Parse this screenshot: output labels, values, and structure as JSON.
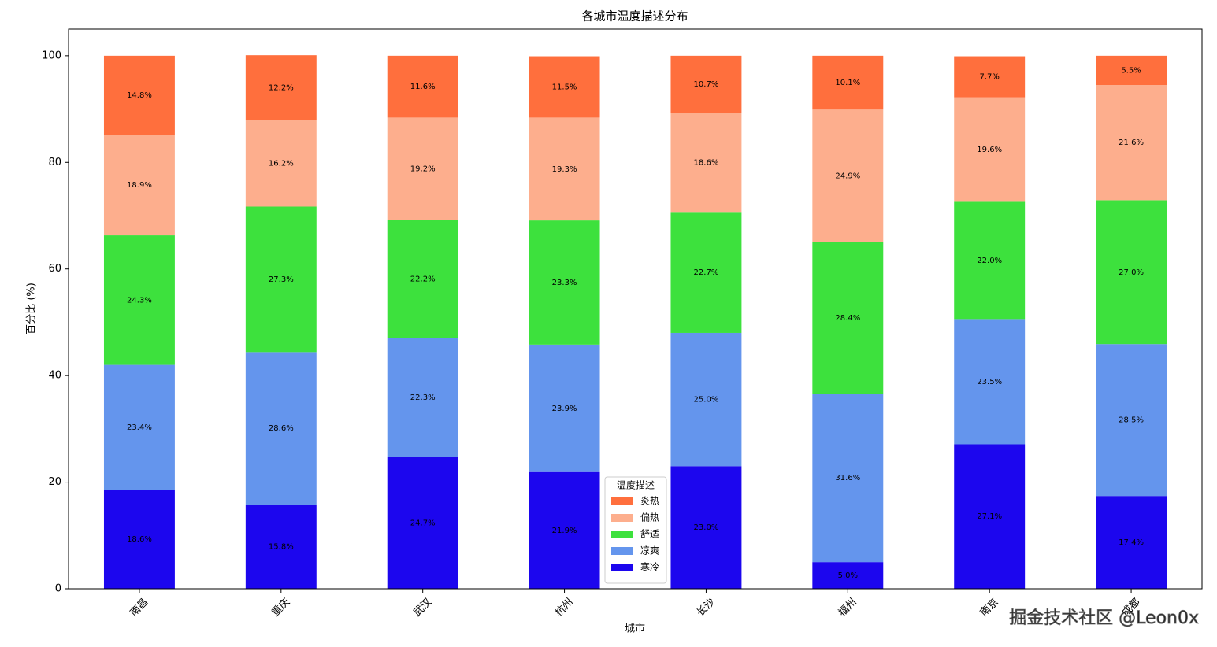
{
  "chart_data": {
    "type": "stacked_bar",
    "title": "各城市温度描述分布",
    "xlabel": "城市",
    "ylabel": "百分比 (%)",
    "legend_title": "温度描述",
    "legend_position": "lower center",
    "categories": [
      "南昌",
      "重庆",
      "武汉",
      "杭州",
      "长沙",
      "福州",
      "南京",
      "成都"
    ],
    "series": [
      {
        "name": "寒冷",
        "color": "#1c06ee",
        "values": [
          18.6,
          15.8,
          24.7,
          21.9,
          23.0,
          5.0,
          27.1,
          17.4
        ],
        "value_labels": [
          "18.6%",
          "15.8%",
          "24.7%",
          "21.9%",
          "23.0%",
          "5.0%",
          "27.1%",
          "17.4%"
        ]
      },
      {
        "name": "凉爽",
        "color": "#6495ed",
        "values": [
          23.4,
          28.6,
          22.3,
          23.9,
          25.0,
          31.6,
          23.5,
          28.5
        ],
        "value_labels": [
          "23.4%",
          "28.6%",
          "22.3%",
          "23.9%",
          "25.0%",
          "31.6%",
          "23.5%",
          "28.5%"
        ]
      },
      {
        "name": "舒适",
        "color": "#3de13d",
        "values": [
          24.3,
          27.3,
          22.2,
          23.3,
          22.7,
          28.4,
          22.0,
          27.0
        ],
        "value_labels": [
          "24.3%",
          "27.3%",
          "22.2%",
          "23.3%",
          "22.7%",
          "28.4%",
          "22.0%",
          "27.0%"
        ]
      },
      {
        "name": "偏热",
        "color": "#fdae8d",
        "values": [
          18.9,
          16.2,
          19.2,
          19.3,
          18.6,
          24.9,
          19.6,
          21.6
        ],
        "value_labels": [
          "18.9%",
          "16.2%",
          "19.2%",
          "19.3%",
          "18.6%",
          "24.9%",
          "19.6%",
          "21.6%"
        ]
      },
      {
        "name": "炎热",
        "color": "#ff6f3d",
        "values": [
          14.8,
          12.2,
          11.6,
          11.5,
          10.7,
          10.1,
          7.7,
          5.5
        ],
        "value_labels": [
          "14.8%",
          "12.2%",
          "11.6%",
          "11.5%",
          "10.7%",
          "10.1%",
          "7.7%",
          "5.5%"
        ]
      }
    ],
    "ylim": [
      0,
      105
    ],
    "yticks": [
      0,
      20,
      40,
      60,
      80,
      100
    ],
    "grid": false,
    "watermark": "掘金技术社区 @Leon0x"
  }
}
